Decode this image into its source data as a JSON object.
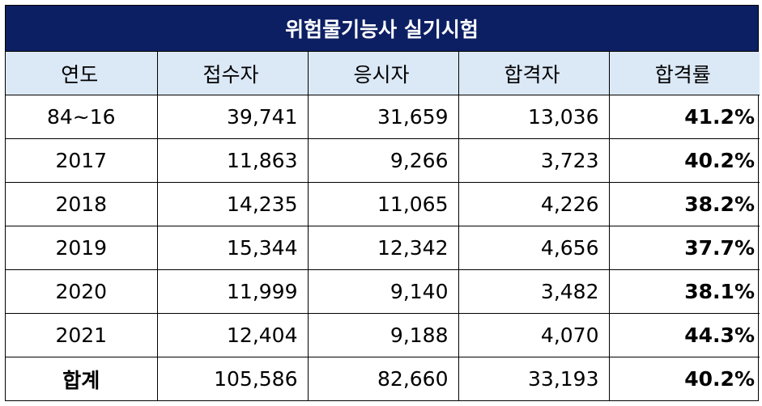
{
  "table": {
    "title": "위험물기능사 실기시험",
    "headers": [
      "연도",
      "접수자",
      "응시자",
      "합격자",
      "합격률"
    ],
    "rows": [
      [
        "84~16",
        "39,741",
        "31,659",
        "13,036",
        "41.2%"
      ],
      [
        "2017",
        "11,863",
        "9,266",
        "3,723",
        "40.2%"
      ],
      [
        "2018",
        "14,235",
        "11,065",
        "4,226",
        "38.2%"
      ],
      [
        "2019",
        "15,344",
        "12,342",
        "4,656",
        "37.7%"
      ],
      [
        "2020",
        "11,999",
        "9,140",
        "3,482",
        "38.1%"
      ],
      [
        "2021",
        "12,404",
        "9,188",
        "4,070",
        "44.3%"
      ]
    ],
    "total": [
      "합계",
      "105,586",
      "82,660",
      "33,193",
      "40.2%"
    ]
  },
  "colors": {
    "title_bg": "#0d1f63",
    "title_text": "#ffffff",
    "header_bg": "#dbe8f6",
    "border": "#000000"
  }
}
